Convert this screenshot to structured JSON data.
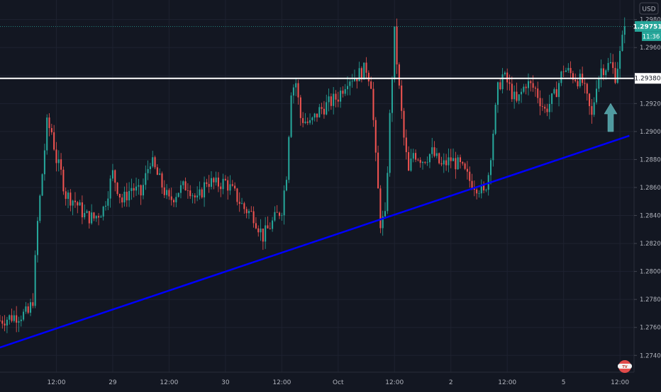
{
  "currency_label": "USD",
  "colors": {
    "background": "#131722",
    "grid": "#1e2230",
    "up": "#26a69a",
    "down": "#ef5350",
    "axis_text": "#b2b5be",
    "trendline": "#0000ff",
    "resistance": "#ffffff",
    "arrow": "#4f9aa0"
  },
  "price_badge": {
    "value": "1.29751",
    "countdown": "11:36"
  },
  "resistance_label": "1.29380",
  "icon_names": [
    "usd-toggle",
    "logo-icon",
    "arrow-up-icon"
  ],
  "chart_data": {
    "type": "candlestick",
    "title": "",
    "xlabel": "",
    "ylabel": "",
    "ylim": [
      1.2728,
      1.2994
    ],
    "y_ticks": [
      "1.27400",
      "1.27600",
      "1.27800",
      "1.28000",
      "1.28200",
      "1.28400",
      "1.28600",
      "1.28800",
      "1.29000",
      "1.29200",
      "1.29400",
      "1.29600",
      "1.29800"
    ],
    "x_ticks": [
      "12:00",
      "29",
      "12:00",
      "30",
      "12:00",
      "Oct",
      "12:00",
      "2",
      "12:00",
      "5",
      "12:00"
    ],
    "x_tick_times": [
      12,
      24,
      36,
      48,
      60,
      72,
      84,
      96,
      108,
      120,
      132
    ],
    "time_range": [
      0,
      135
    ],
    "price_path": [
      [
        0,
        1.2765
      ],
      [
        3,
        1.2768
      ],
      [
        6,
        1.277
      ],
      [
        7,
        1.278
      ],
      [
        8,
        1.2835
      ],
      [
        9,
        1.287
      ],
      [
        10,
        1.2905
      ],
      [
        11,
        1.29
      ],
      [
        12,
        1.288
      ],
      [
        13,
        1.287
      ],
      [
        14,
        1.2855
      ],
      [
        16,
        1.285
      ],
      [
        18,
        1.284
      ],
      [
        20,
        1.2838
      ],
      [
        22,
        1.2845
      ],
      [
        24,
        1.287
      ],
      [
        26,
        1.285
      ],
      [
        28,
        1.286
      ],
      [
        30,
        1.2855
      ],
      [
        32,
        1.288
      ],
      [
        34,
        1.2865
      ],
      [
        36,
        1.285
      ],
      [
        38,
        1.2858
      ],
      [
        40,
        1.2862
      ],
      [
        42,
        1.285
      ],
      [
        44,
        1.2865
      ],
      [
        46,
        1.2862
      ],
      [
        48,
        1.2864
      ],
      [
        50,
        1.2855
      ],
      [
        52,
        1.2845
      ],
      [
        54,
        1.284
      ],
      [
        56,
        1.2825
      ],
      [
        58,
        1.2835
      ],
      [
        60,
        1.2845
      ],
      [
        61,
        1.287
      ],
      [
        62,
        1.293
      ],
      [
        63,
        1.2935
      ],
      [
        64,
        1.291
      ],
      [
        66,
        1.2905
      ],
      [
        68,
        1.2915
      ],
      [
        70,
        1.292
      ],
      [
        72,
        1.2925
      ],
      [
        74,
        1.2938
      ],
      [
        76,
        1.294
      ],
      [
        78,
        1.2945
      ],
      [
        79,
        1.2935
      ],
      [
        80,
        1.288
      ],
      [
        81,
        1.2835
      ],
      [
        82,
        1.2838
      ],
      [
        83,
        1.291
      ],
      [
        84,
        1.297
      ],
      [
        85,
        1.293
      ],
      [
        86,
        1.2895
      ],
      [
        87,
        1.287
      ],
      [
        88,
        1.2885
      ],
      [
        90,
        1.288
      ],
      [
        92,
        1.2885
      ],
      [
        94,
        1.2875
      ],
      [
        96,
        1.288
      ],
      [
        98,
        1.2875
      ],
      [
        100,
        1.2865
      ],
      [
        102,
        1.286
      ],
      [
        103,
        1.2855
      ],
      [
        104,
        1.287
      ],
      [
        105,
        1.29
      ],
      [
        106,
        1.293
      ],
      [
        107,
        1.294
      ],
      [
        108,
        1.2935
      ],
      [
        110,
        1.292
      ],
      [
        112,
        1.2935
      ],
      [
        114,
        1.293
      ],
      [
        116,
        1.2915
      ],
      [
        118,
        1.2925
      ],
      [
        120,
        1.2945
      ],
      [
        122,
        1.294
      ],
      [
        124,
        1.2935
      ],
      [
        126,
        1.291
      ],
      [
        127,
        1.2935
      ],
      [
        128,
        1.2945
      ],
      [
        130,
        1.2948
      ],
      [
        131,
        1.294
      ],
      [
        132,
        1.2955
      ],
      [
        133,
        1.2975
      ]
    ],
    "resistance_level": 1.2938,
    "trendline": {
      "start": [
        -1.5,
        1.2744
      ],
      "end": [
        134,
        1.2897
      ]
    },
    "last_price": 1.29751
  }
}
